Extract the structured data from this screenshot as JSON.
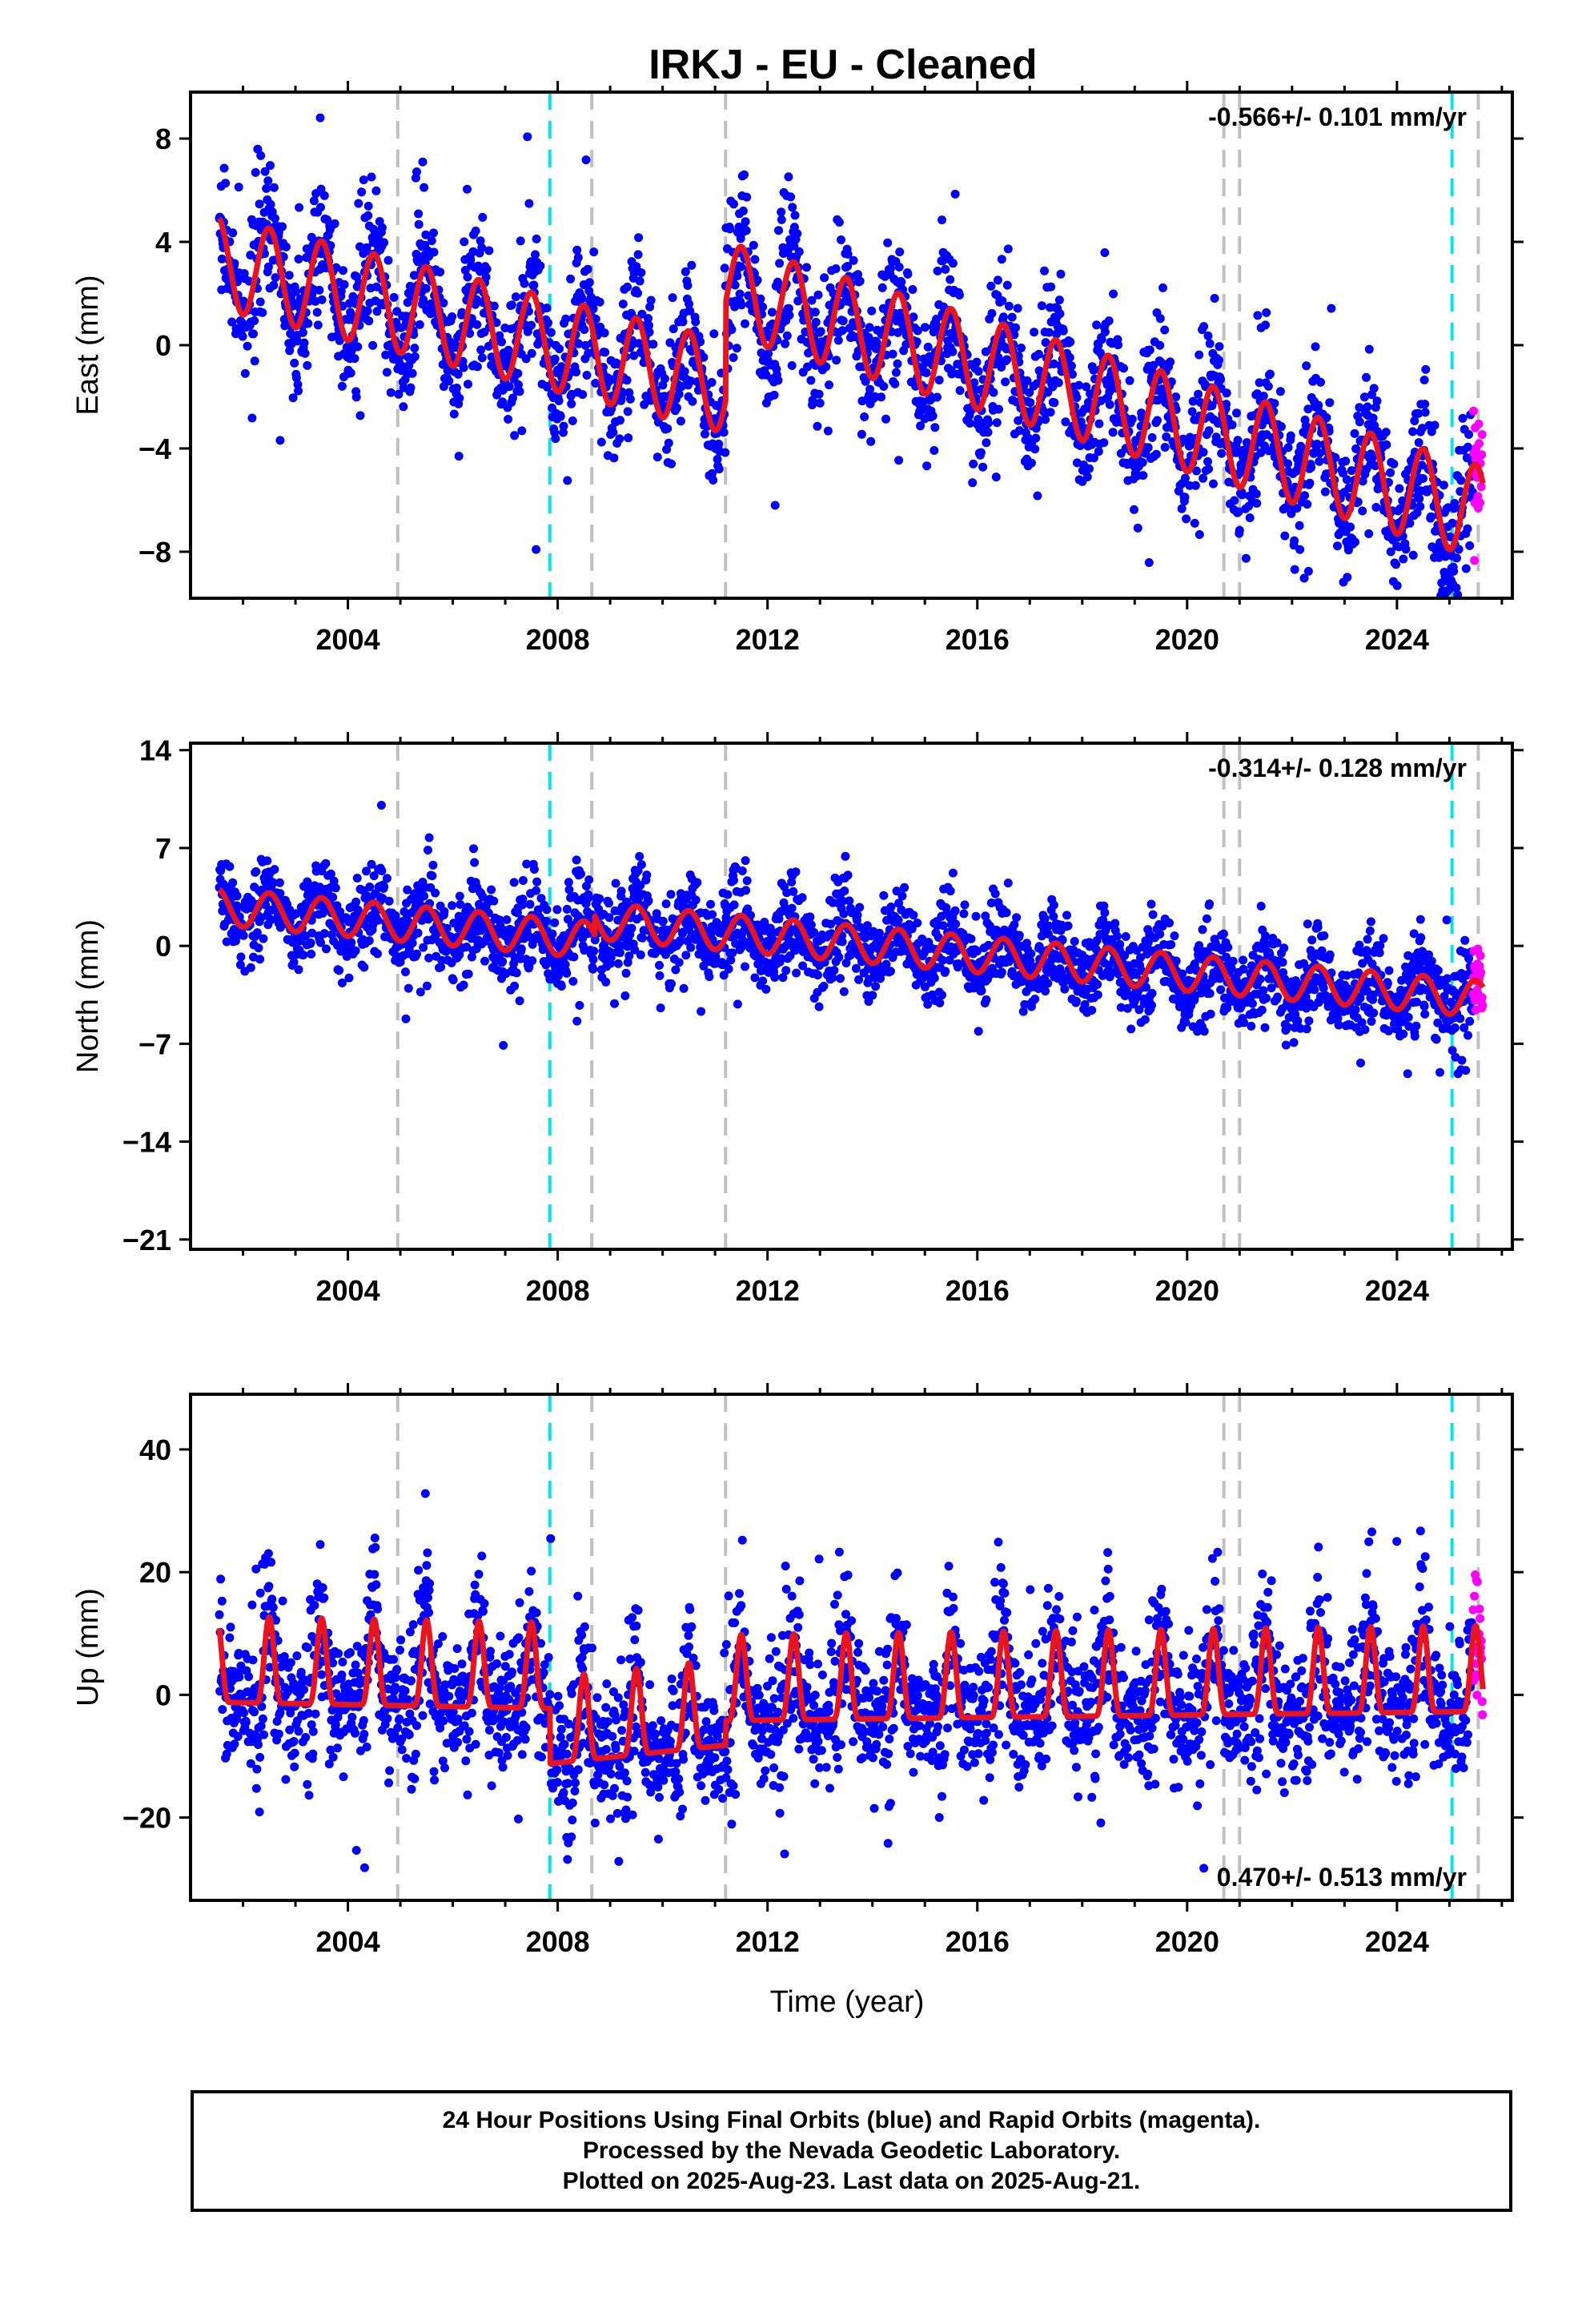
{
  "figure": {
    "title": "IRKJ  - EU - Cleaned",
    "xlabel": "Time (year)",
    "footer_lines": [
      "24 Hour Positions Using Final Orbits (blue) and Rapid Orbits (magenta).",
      "Processed by the Nevada Geodetic Laboratory.",
      "Plotted on 2025-Aug-23. Last data on 2025-Aug-21."
    ],
    "colors": {
      "final_orbits": "#0000ff",
      "rapid_orbits": "#ff00ff",
      "model_fit": "#e8141e",
      "antenna_change": "#00e5ee",
      "equipment_change": "#c0c0c0",
      "frame": "#000000"
    }
  },
  "chart_data": [
    {
      "type": "scatter",
      "id": "east",
      "ylabel": "East (mm)",
      "rate_label": "-0.566+/- 0.101 mm/yr",
      "rate_position": "top-right",
      "xlim": [
        2001.0,
        2026.2
      ],
      "ylim": [
        -9.8,
        9.8
      ],
      "xticks": [
        2004,
        2008,
        2012,
        2016,
        2020,
        2024
      ],
      "yticks": [
        -8,
        -4,
        0,
        4,
        8
      ],
      "ytick_labels": [
        "−8",
        "−4",
        "0",
        "4",
        "8"
      ],
      "data_start": 2001.55,
      "data_end": 2025.64,
      "rapid_start": 2025.45,
      "trend_segments": [
        {
          "x": [
            2001.55,
            2011.2
          ],
          "y": [
            3.2,
            -1.6
          ]
        },
        {
          "x": [
            2011.2,
            2025.64
          ],
          "y": [
            2.2,
            -6.5
          ]
        }
      ],
      "annual_amplitude": 1.8,
      "noise_sigma": 1.1,
      "gray_lines": [
        2004.95,
        2008.65,
        2011.2,
        2020.7,
        2021.0,
        2025.55
      ],
      "cyan_lines": [
        2007.85,
        2025.05
      ]
    },
    {
      "type": "scatter",
      "id": "north",
      "ylabel": "North (mm)",
      "rate_label": "-0.314+/- 0.128 mm/yr",
      "rate_position": "top-right",
      "xlim": [
        2001.0,
        2026.2
      ],
      "ylim": [
        -21.7,
        14.5
      ],
      "xticks": [
        2004,
        2008,
        2012,
        2016,
        2020,
        2024
      ],
      "yticks": [
        -21,
        -14,
        -7,
        0,
        7,
        14
      ],
      "ytick_labels": [
        "−21",
        "−14",
        "−7",
        "0",
        "7",
        "14"
      ],
      "data_start": 2001.55,
      "data_end": 2025.64,
      "rapid_start": 2025.45,
      "trend_segments": [
        {
          "x": [
            2001.55,
            2008.7
          ],
          "y": [
            2.8,
            0.4
          ]
        },
        {
          "x": [
            2008.7,
            2025.64
          ],
          "y": [
            1.8,
            -3.8
          ]
        }
      ],
      "annual_amplitude": 1.3,
      "noise_sigma": 1.3,
      "gray_lines": [
        2004.95,
        2008.65,
        2011.2,
        2020.7,
        2021.0,
        2025.55
      ],
      "cyan_lines": [
        2007.85,
        2025.05
      ]
    },
    {
      "type": "scatter",
      "id": "up",
      "ylabel": "Up (mm)",
      "rate_label": "0.470+/- 0.513 mm/yr",
      "rate_position": "bottom-right",
      "xlim": [
        2001.0,
        2026.2
      ],
      "ylim": [
        -33.5,
        49.0
      ],
      "xticks": [
        2004,
        2008,
        2012,
        2016,
        2020,
        2024
      ],
      "yticks": [
        -20,
        0,
        20,
        40
      ],
      "ytick_labels": [
        "−20",
        "0",
        "20",
        "40"
      ],
      "data_start": 2001.55,
      "data_end": 2025.64,
      "rapid_start": 2025.45,
      "trend_segments": [
        {
          "x": [
            2001.55,
            2007.85
          ],
          "y": [
            3.0,
            2.0
          ]
        },
        {
          "x": [
            2007.85,
            2011.2
          ],
          "y": [
            -7.0,
            -4.0
          ]
        },
        {
          "x": [
            2011.2,
            2025.64
          ],
          "y": [
            0.0,
            1.5
          ]
        }
      ],
      "annual_amplitude": 7.0,
      "noise_sigma": 5.0,
      "gray_lines": [
        2004.95,
        2008.65,
        2011.2,
        2020.7,
        2021.0,
        2025.55
      ],
      "cyan_lines": [
        2007.85,
        2025.05
      ]
    }
  ]
}
